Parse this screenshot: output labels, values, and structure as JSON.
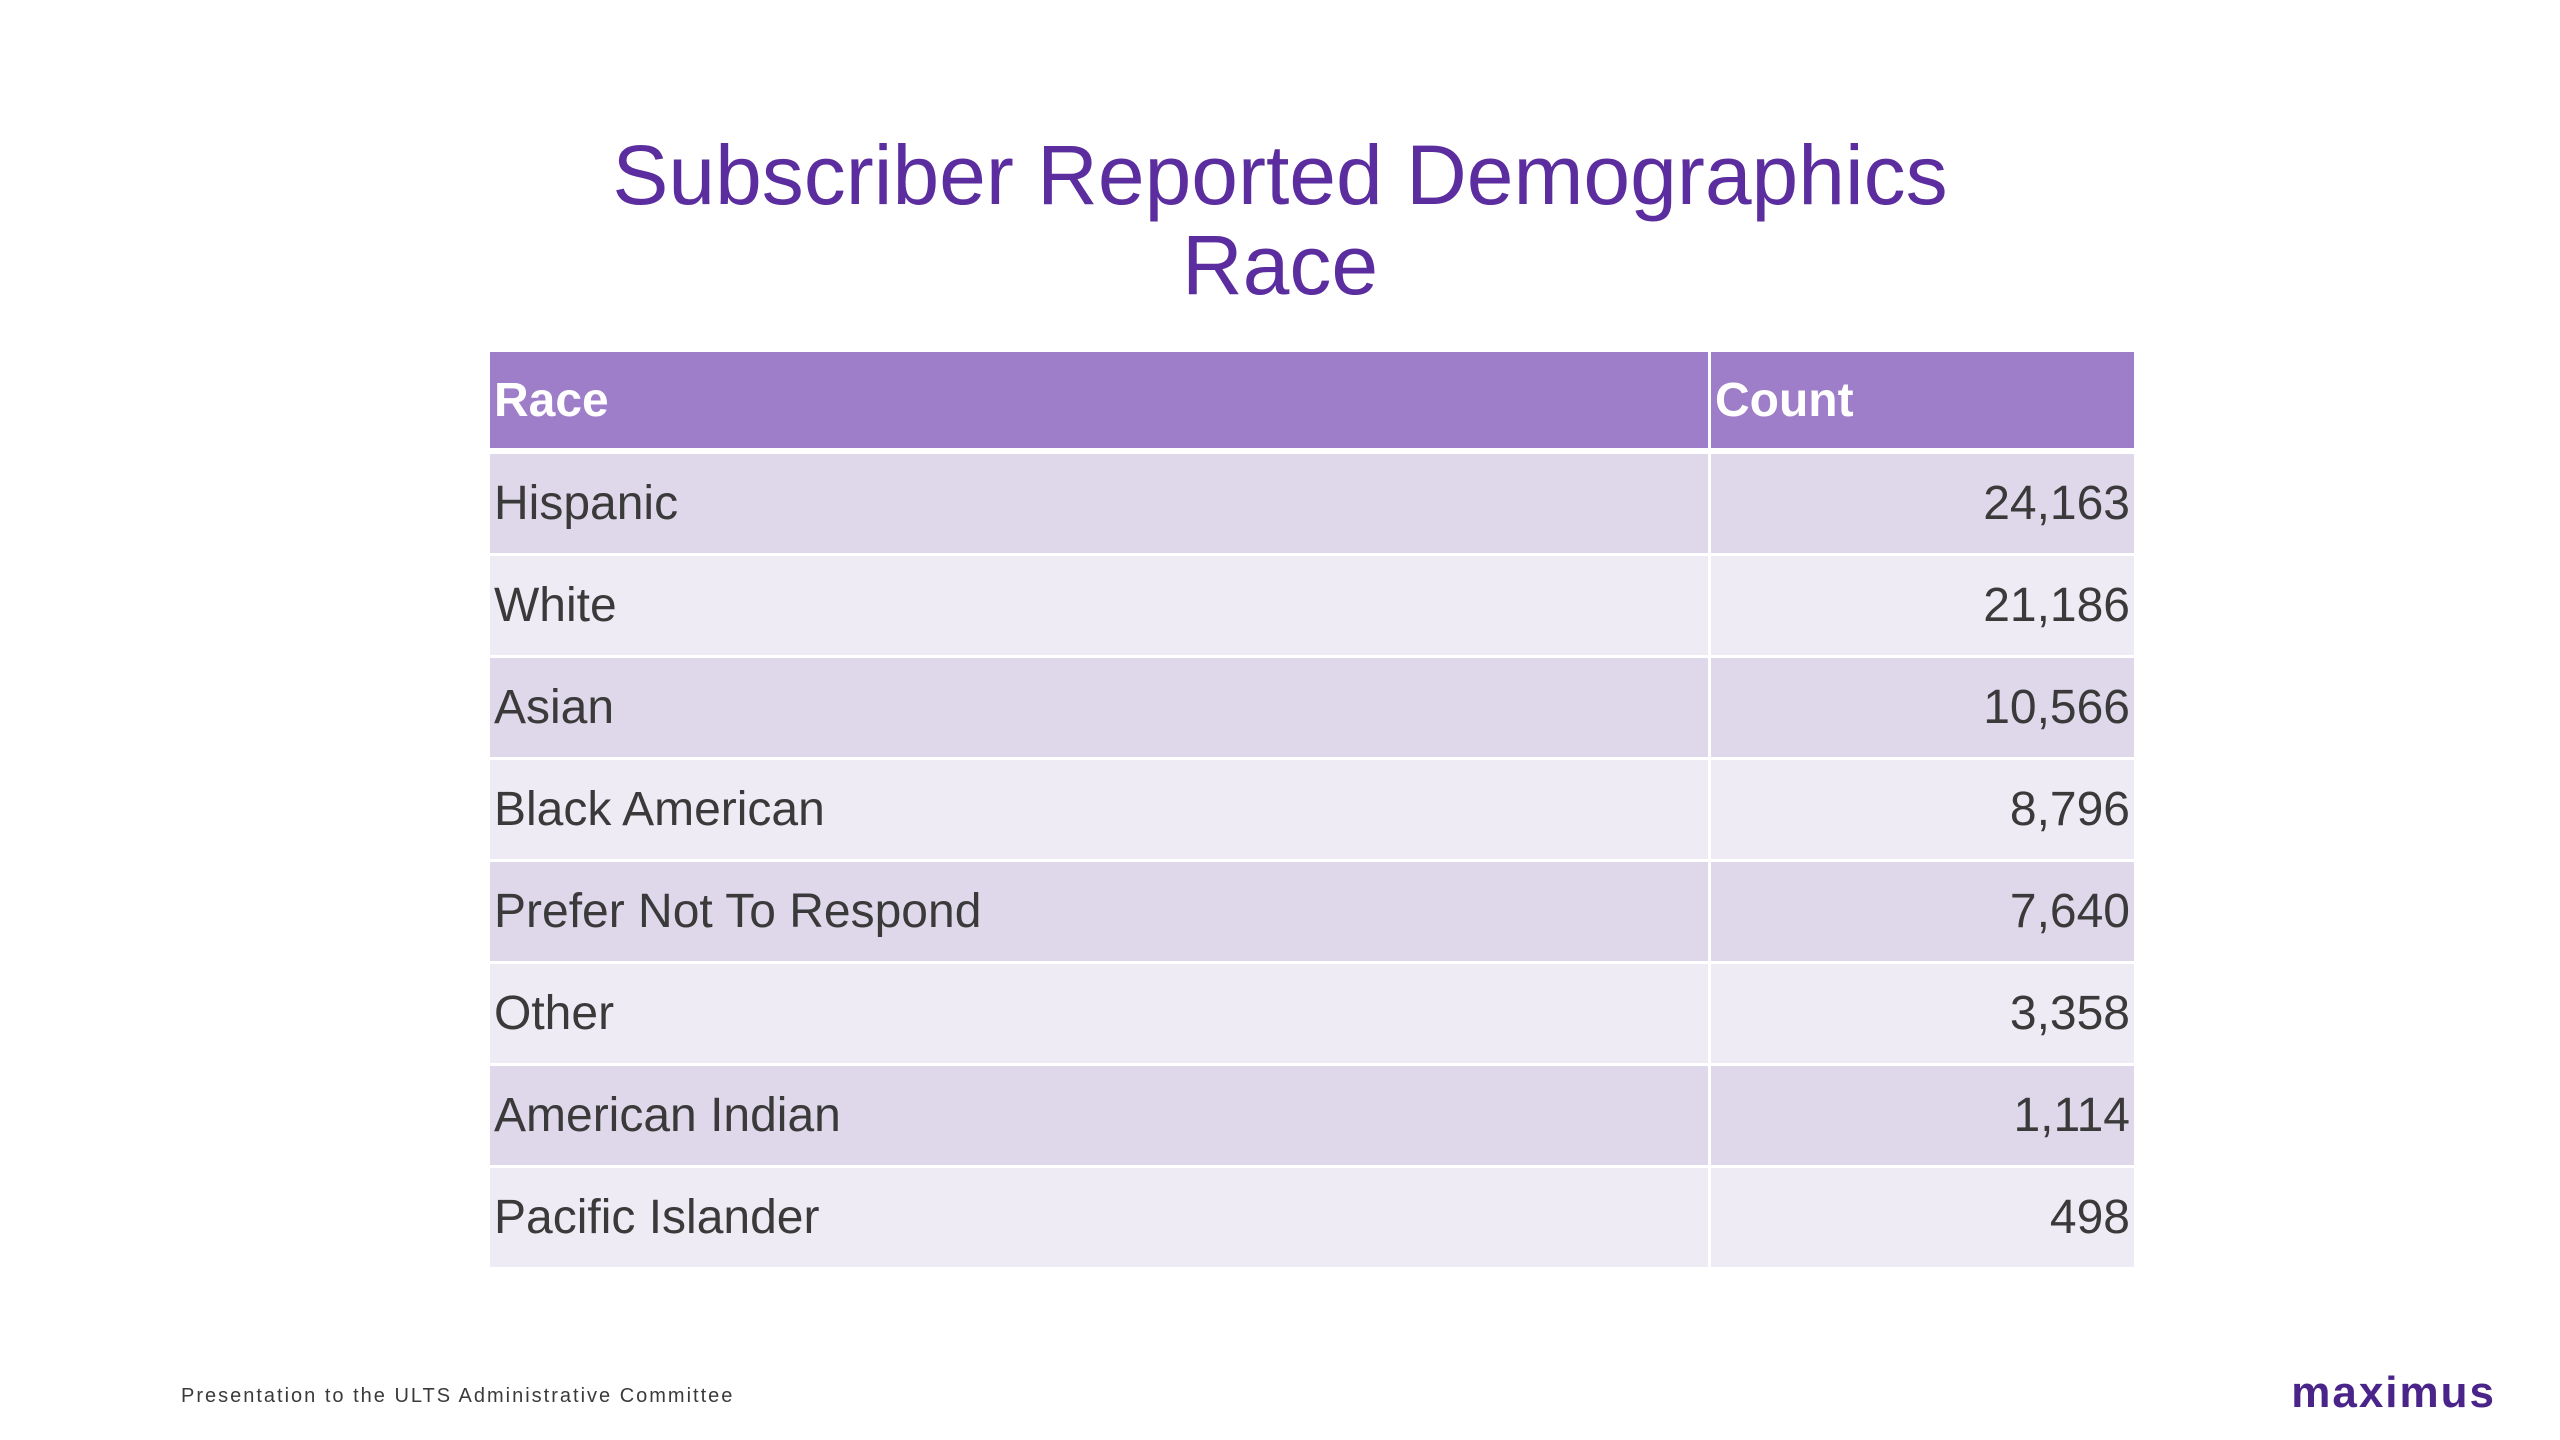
{
  "title": {
    "line1": "Subscriber Reported Demographics",
    "line2": "Race"
  },
  "table": {
    "headers": [
      "Race",
      "Count"
    ],
    "rows": [
      {
        "race": "Hispanic",
        "count": "24,163"
      },
      {
        "race": "White",
        "count": "21,186"
      },
      {
        "race": "Asian",
        "count": "10,566"
      },
      {
        "race": "Black American",
        "count": "8,796"
      },
      {
        "race": "Prefer Not To Respond",
        "count": "7,640"
      },
      {
        "race": "Other",
        "count": "3,358"
      },
      {
        "race": "American Indian",
        "count": "1,114"
      },
      {
        "race": "Pacific Islander",
        "count": "498"
      }
    ]
  },
  "footer": {
    "text": "Presentation to the ULTS Administrative Committee",
    "logo": "maximus"
  },
  "colors": {
    "title": "#5b2d9e",
    "header_bg": "#9e7ec9",
    "row_dark": "#dfd7ea",
    "row_light": "#efebf5",
    "logo": "#4a2488"
  }
}
